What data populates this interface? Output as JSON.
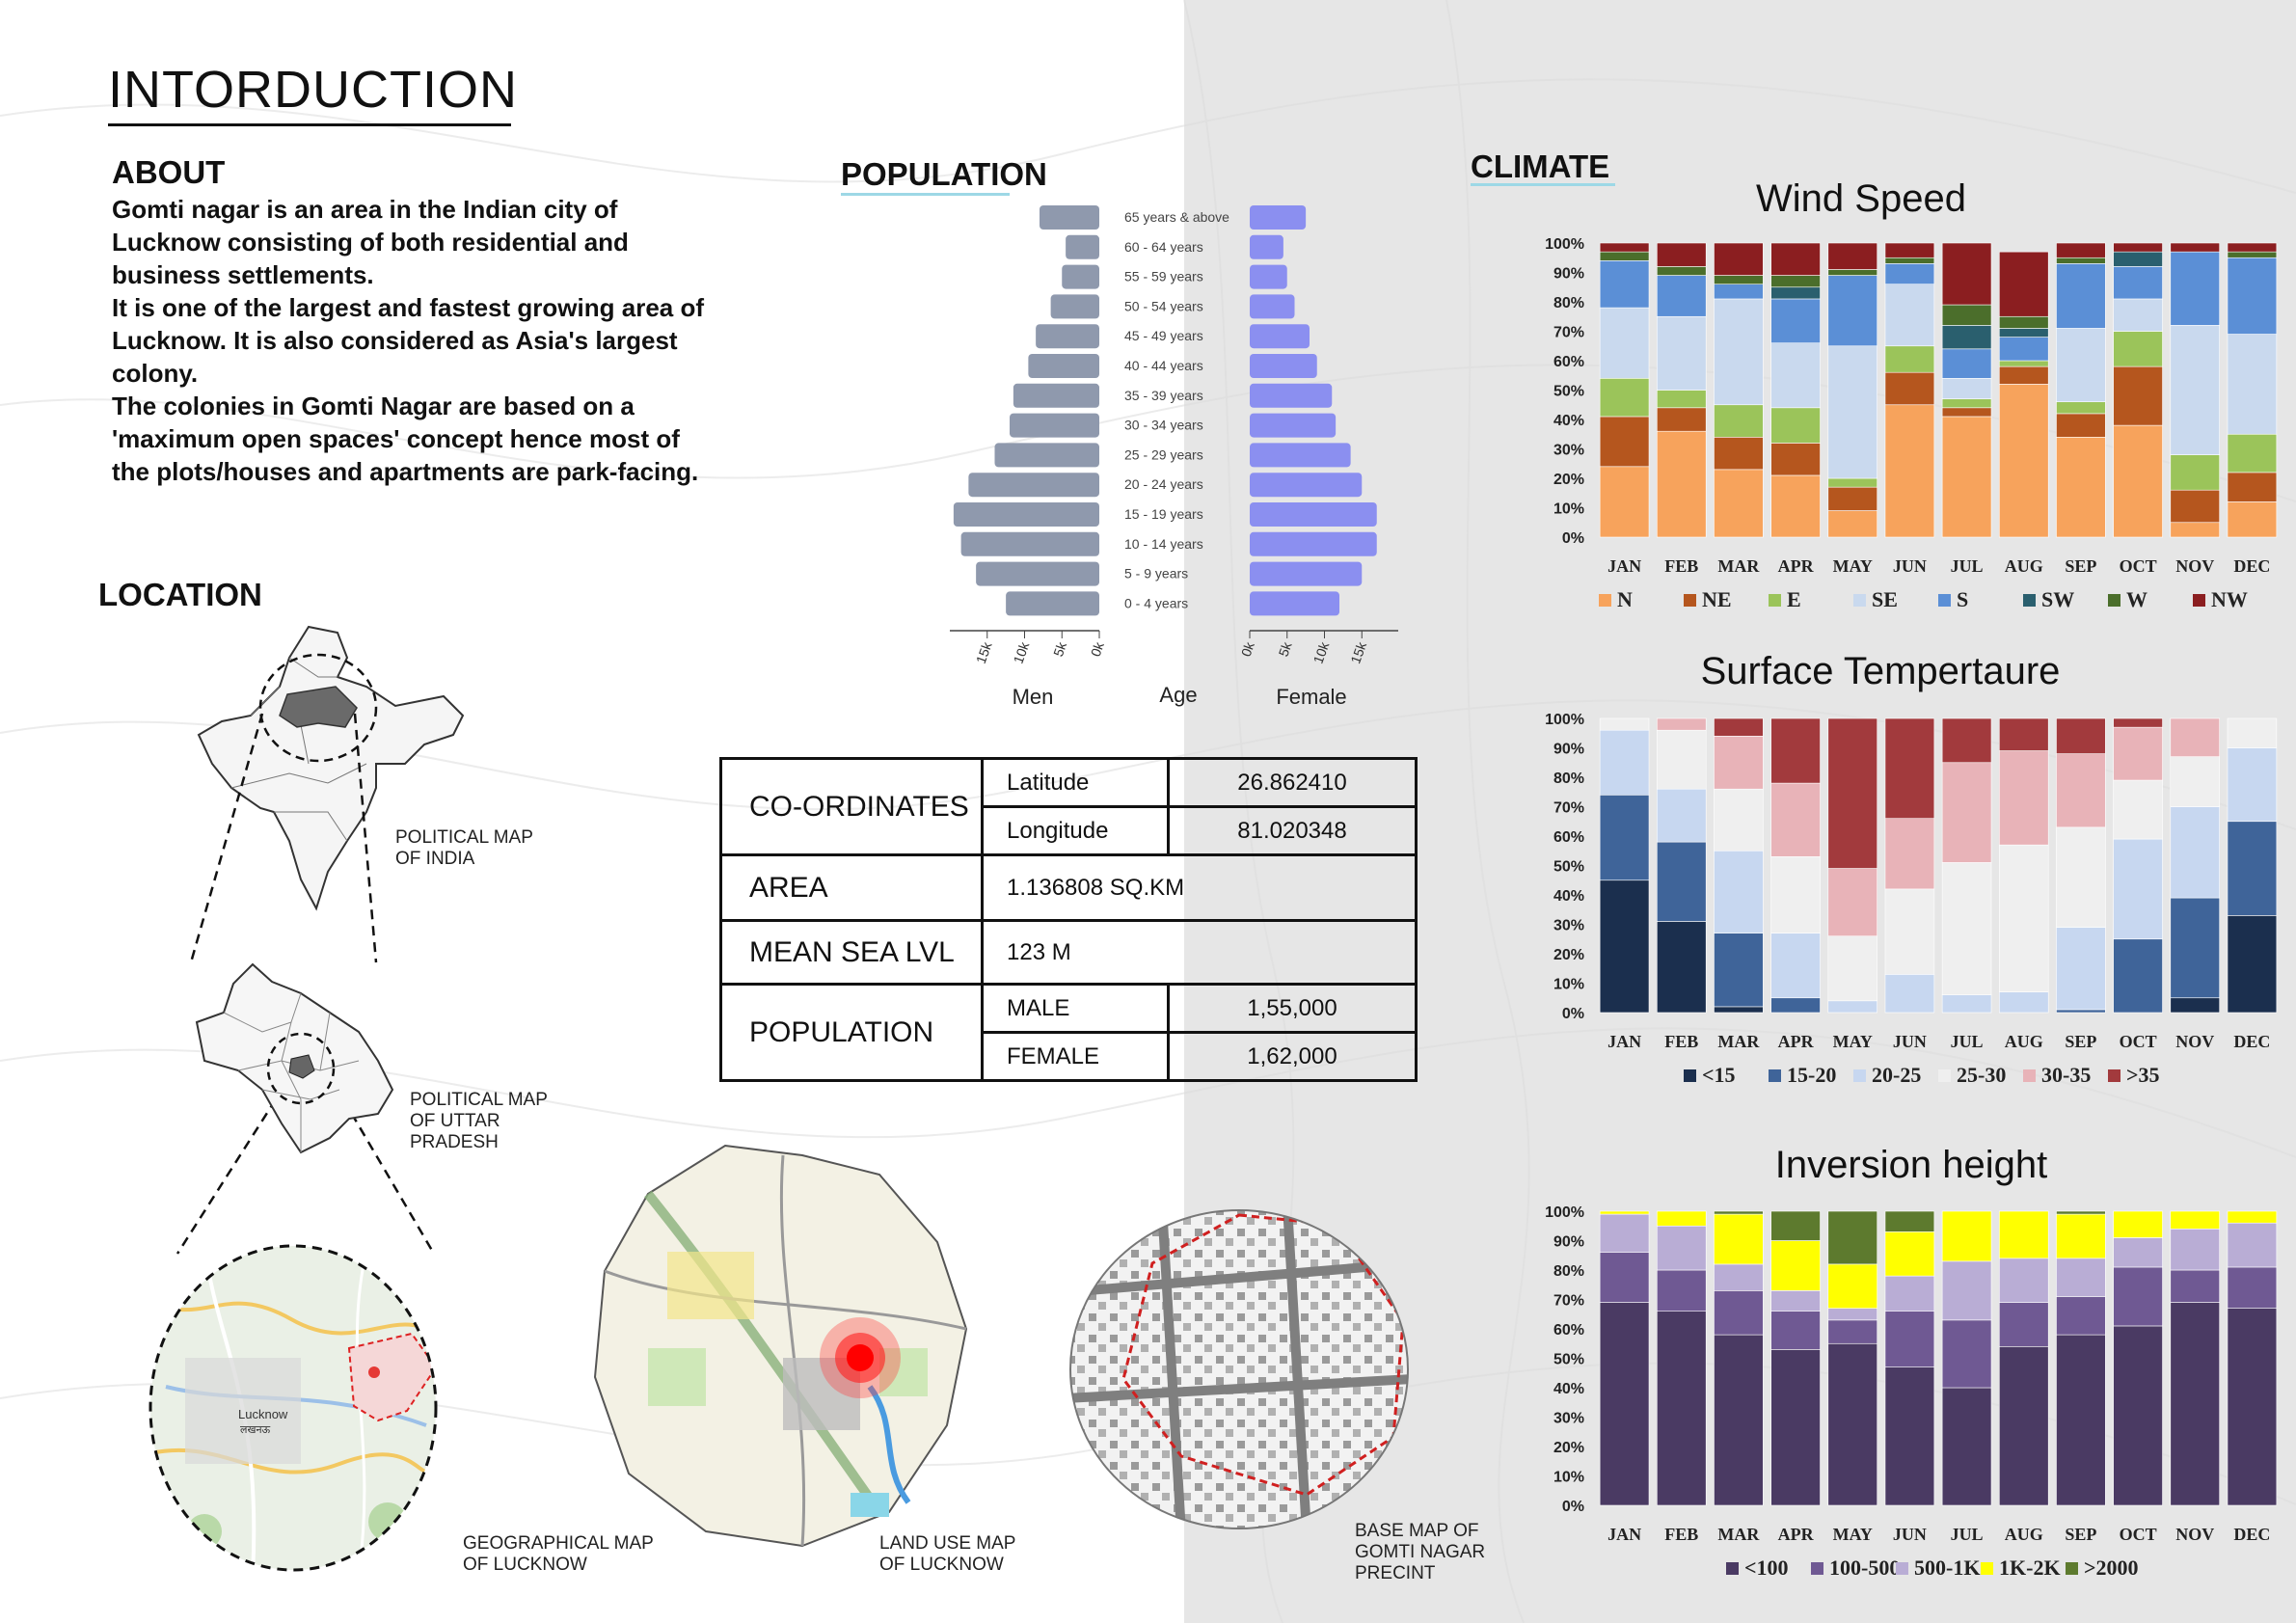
{
  "header": {
    "title": "INTORDUCTION"
  },
  "about": {
    "heading": "ABOUT",
    "paragraphs": [
      "Gomti nagar is an area in the Indian city of Lucknow consisting of both residential and business settlements.",
      "It is one of the largest and fastest growing area of Lucknow. It is also considered as Asia's largest colony.",
      "The colonies in Gomti Nagar are based on a 'maximum open spaces' concept hence most of the plots/houses and apartments are park-facing."
    ]
  },
  "location": {
    "heading": "LOCATION",
    "maps": [
      {
        "label_lines": [
          "POLITICAL MAP",
          "OF INDIA"
        ]
      },
      {
        "label_lines": [
          "POLITICAL MAP",
          "OF UTTAR",
          "PRADESH"
        ]
      },
      {
        "label_lines": [
          "GEOGRAPHICAL MAP",
          "OF LUCKNOW"
        ],
        "inset_labels": [
          "Lucknow",
          "लखनऊ"
        ]
      },
      {
        "label_lines": [
          "LAND USE MAP",
          "OF LUCKNOW"
        ]
      },
      {
        "label_lines": [
          "BASE MAP OF",
          "GOMTI NAGAR",
          "PRECINT"
        ]
      }
    ]
  },
  "population": {
    "heading": "POPULATION",
    "chart_data": {
      "type": "bar",
      "orientation": "horizontal-pyramid",
      "categories": [
        "0 - 4 years",
        "5 - 9 years",
        "10 - 14 years",
        "15 - 19 years",
        "20 - 24 years",
        "25 - 29 years",
        "30 - 34 years",
        "35 - 39 years",
        "40 - 44 years",
        "45 - 49 years",
        "50 - 54 years",
        "55 - 59 years",
        "60 - 64 years",
        "65 years & above"
      ],
      "series": [
        {
          "name": "Men",
          "values": [
            12500,
            16500,
            18500,
            19500,
            17500,
            14000,
            12000,
            11500,
            9500,
            8500,
            6500,
            5000,
            4500,
            8000
          ]
        },
        {
          "name": "Female",
          "values": [
            12000,
            15000,
            17000,
            17000,
            15000,
            13500,
            11500,
            11000,
            9000,
            8000,
            6000,
            5000,
            4500,
            7500
          ]
        }
      ],
      "xticks": [
        "15k",
        "10k",
        "5k",
        "0k"
      ],
      "xticks_right": [
        "0k",
        "5k",
        "10k",
        "15k"
      ],
      "xlim": [
        0,
        20000
      ],
      "axis_labels": {
        "left": "Men",
        "center": "Age",
        "right": "Female"
      },
      "colors": {
        "Men": "#8f99ad",
        "Female": "#8b8ff0"
      }
    }
  },
  "coordinates_table": {
    "coordinates_label": "CO-ORDINATES",
    "latitude_label": "Latitude",
    "latitude_value": "26.862410",
    "longitude_label": "Longitude",
    "longitude_value": "81.020348",
    "area_label": "AREA",
    "area_value": "1.136808  SQ.KM",
    "msl_label": "MEAN SEA  LVL",
    "msl_value": "123 M",
    "population_label": "POPULATION",
    "male_label": "MALE",
    "male_value": "1,55,000",
    "female_label": "FEMALE",
    "female_value": "1,62,000"
  },
  "climate": {
    "heading": "CLIMATE",
    "chart_data": [
      {
        "type": "bar",
        "stacked": true,
        "title": "Wind Speed",
        "categories": [
          "JAN",
          "FEB",
          "MAR",
          "APR",
          "MAY",
          "JUN",
          "JUL",
          "AUG",
          "SEP",
          "OCT",
          "NOV",
          "DEC"
        ],
        "yticks": [
          "0%",
          "10%",
          "20%",
          "30%",
          "40%",
          "50%",
          "60%",
          "70%",
          "80%",
          "90%",
          "100%"
        ],
        "ylim": [
          0,
          100
        ],
        "series": [
          {
            "name": "N",
            "color": "#f7a35c",
            "values": [
              24,
              36,
              23,
              21,
              9,
              45,
              41,
              52,
              34,
              38,
              5,
              12
            ]
          },
          {
            "name": "NE",
            "color": "#b5561e",
            "values": [
              17,
              8,
              11,
              11,
              8,
              11,
              3,
              6,
              8,
              20,
              11,
              10
            ]
          },
          {
            "name": "E",
            "color": "#9bc45a",
            "values": [
              13,
              6,
              11,
              12,
              3,
              9,
              3,
              2,
              4,
              12,
              12,
              13
            ]
          },
          {
            "name": "SE",
            "color": "#c9d9ee",
            "values": [
              24,
              25,
              36,
              22,
              45,
              21,
              7,
              0,
              25,
              11,
              44,
              34
            ]
          },
          {
            "name": "S",
            "color": "#5b8fd6",
            "values": [
              16,
              14,
              5,
              15,
              24,
              7,
              10,
              8,
              22,
              11,
              25,
              26
            ]
          },
          {
            "name": "SW",
            "color": "#2a5f6e",
            "values": [
              0,
              0,
              0,
              4,
              0,
              0,
              8,
              3,
              0,
              5,
              0,
              0
            ]
          },
          {
            "name": "W",
            "color": "#4b6e2b",
            "values": [
              3,
              3,
              3,
              4,
              2,
              2,
              7,
              4,
              2,
              0,
              0,
              2
            ]
          },
          {
            "name": "NW",
            "color": "#8b1e20",
            "values": [
              3,
              8,
              11,
              11,
              9,
              5,
              21,
              22,
              5,
              3,
              3,
              3
            ]
          }
        ]
      },
      {
        "type": "bar",
        "stacked": true,
        "title": "Surface Tempertaure",
        "categories": [
          "JAN",
          "FEB",
          "MAR",
          "APR",
          "MAY",
          "JUN",
          "JUL",
          "AUG",
          "SEP",
          "OCT",
          "NOV",
          "DEC"
        ],
        "yticks": [
          "0%",
          "10%",
          "20%",
          "30%",
          "40%",
          "50%",
          "60%",
          "70%",
          "80%",
          "90%",
          "100%"
        ],
        "ylim": [
          0,
          100
        ],
        "series": [
          {
            "name": "<15",
            "color": "#1b2f4e",
            "values": [
              45,
              31,
              2,
              0,
              0,
              0,
              0,
              0,
              0,
              0,
              5,
              33
            ]
          },
          {
            "name": "15-20",
            "color": "#3f6499",
            "values": [
              29,
              27,
              25,
              5,
              0,
              0,
              0,
              0,
              1,
              25,
              34,
              32
            ]
          },
          {
            "name": "20-25",
            "color": "#c7d7f0",
            "values": [
              22,
              18,
              28,
              22,
              4,
              13,
              6,
              7,
              28,
              34,
              31,
              25
            ]
          },
          {
            "name": "25-30",
            "color": "#efefef",
            "values": [
              4,
              20,
              21,
              26,
              22,
              29,
              45,
              50,
              34,
              20,
              17,
              10
            ]
          },
          {
            "name": "30-35",
            "color": "#e8b3b8",
            "values": [
              0,
              4,
              18,
              25,
              23,
              24,
              34,
              32,
              25,
              18,
              13,
              0
            ]
          },
          {
            "name": ">35",
            "color": "#a23a3d",
            "values": [
              0,
              0,
              6,
              22,
              51,
              34,
              15,
              11,
              12,
              3,
              0,
              0
            ]
          }
        ]
      },
      {
        "type": "bar",
        "stacked": true,
        "title": "Inversion height",
        "categories": [
          "JAN",
          "FEB",
          "MAR",
          "APR",
          "MAY",
          "JUN",
          "JUL",
          "AUG",
          "SEP",
          "OCT",
          "NOV",
          "DEC"
        ],
        "yticks": [
          "0%",
          "10%",
          "20%",
          "30%",
          "40%",
          "50%",
          "60%",
          "70%",
          "80%",
          "90%",
          "100%"
        ],
        "ylim": [
          0,
          100
        ],
        "series": [
          {
            "name": "<100",
            "color": "#4a3a63",
            "values": [
              69,
              66,
              58,
              53,
              55,
              47,
              40,
              54,
              58,
              61,
              69,
              67
            ]
          },
          {
            "name": "100-500",
            "color": "#6f5993",
            "values": [
              17,
              14,
              15,
              13,
              8,
              19,
              23,
              15,
              13,
              20,
              11,
              14
            ]
          },
          {
            "name": "500-1K",
            "color": "#b9add5",
            "values": [
              13,
              15,
              9,
              7,
              4,
              12,
              20,
              15,
              13,
              10,
              14,
              15
            ]
          },
          {
            "name": "1K-2K",
            "color": "#ffff00",
            "values": [
              1,
              5,
              17,
              17,
              15,
              15,
              17,
              16,
              15,
              9,
              6,
              4
            ]
          },
          {
            "name": ">2000",
            "color": "#5d7a2e",
            "values": [
              0,
              0,
              1,
              10,
              18,
              7,
              0,
              0,
              1,
              0,
              0,
              0
            ]
          }
        ]
      }
    ]
  }
}
